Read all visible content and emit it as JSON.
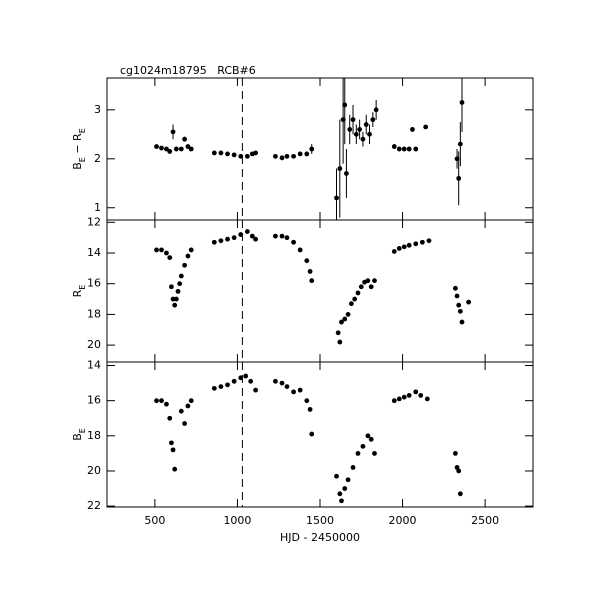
{
  "chart_data": [
    {
      "type": "scatter",
      "title": "cg1024m18795   RCB#6",
      "ylabel": "B_E − R_E",
      "x": [
        510,
        540,
        570,
        590,
        610,
        630,
        660,
        680,
        700,
        720,
        860,
        900,
        940,
        980,
        1020,
        1060,
        1090,
        1110,
        1230,
        1270,
        1300,
        1340,
        1380,
        1420,
        1450,
        1600,
        1620,
        1640,
        1650,
        1660,
        1680,
        1700,
        1720,
        1740,
        1760,
        1780,
        1800,
        1820,
        1840,
        1950,
        1980,
        2010,
        2040,
        2060,
        2080,
        2140,
        2330,
        2340,
        2350,
        2360
      ],
      "values": [
        2.25,
        2.22,
        2.2,
        2.15,
        2.55,
        2.2,
        2.2,
        2.4,
        2.25,
        2.2,
        2.12,
        2.12,
        2.1,
        2.08,
        2.05,
        2.05,
        2.1,
        2.12,
        2.05,
        2.02,
        2.05,
        2.05,
        2.1,
        2.1,
        2.2,
        1.2,
        1.8,
        2.8,
        3.1,
        1.7,
        2.6,
        2.8,
        2.5,
        2.6,
        2.4,
        2.7,
        2.5,
        2.8,
        3.0,
        2.25,
        2.2,
        2.2,
        2.2,
        2.6,
        2.2,
        2.65,
        2.0,
        1.6,
        2.3,
        3.15
      ],
      "errors": [
        0.03,
        0.03,
        0.03,
        0.05,
        0.15,
        0.05,
        0.03,
        0.05,
        0.03,
        0.03,
        0.03,
        0.03,
        0.03,
        0.03,
        0.03,
        0.03,
        0.03,
        0.03,
        0.03,
        0.05,
        0.03,
        0.03,
        0.03,
        0.05,
        0.1,
        0.6,
        1.0,
        0.9,
        0.8,
        0.5,
        0.3,
        0.3,
        0.2,
        0.2,
        0.15,
        0.2,
        0.2,
        0.15,
        0.2,
        0.05,
        0.05,
        0.05,
        0.05,
        0.05,
        0.05,
        0.03,
        0.2,
        0.55,
        0.45,
        0.6
      ],
      "xlim": [
        210,
        2790
      ],
      "ylim": [
        0.75,
        3.65
      ],
      "yticks": [
        1,
        2,
        3
      ],
      "vline": 1030,
      "color": "#000000"
    },
    {
      "type": "scatter",
      "ylabel": "R_E",
      "x": [
        510,
        540,
        570,
        590,
        600,
        610,
        620,
        630,
        640,
        650,
        660,
        680,
        700,
        720,
        860,
        900,
        940,
        980,
        1020,
        1060,
        1090,
        1110,
        1230,
        1270,
        1300,
        1340,
        1380,
        1420,
        1440,
        1450,
        1610,
        1620,
        1630,
        1650,
        1670,
        1690,
        1710,
        1730,
        1750,
        1770,
        1790,
        1810,
        1830,
        1950,
        1980,
        2010,
        2040,
        2080,
        2120,
        2160,
        2320,
        2330,
        2340,
        2350,
        2360,
        2400
      ],
      "values": [
        13.8,
        13.8,
        14,
        14.3,
        16.2,
        17,
        17.4,
        17,
        16.5,
        16,
        15.5,
        14.8,
        14.2,
        13.8,
        13.3,
        13.2,
        13.1,
        13.0,
        12.8,
        12.6,
        12.9,
        13.1,
        12.9,
        12.9,
        13.0,
        13.3,
        13.8,
        14.5,
        15.2,
        15.8,
        19.2,
        19.8,
        18.5,
        18.3,
        18.0,
        17.3,
        17.0,
        16.6,
        16.2,
        15.9,
        15.8,
        16.2,
        15.8,
        13.9,
        13.7,
        13.6,
        13.5,
        13.4,
        13.3,
        13.2,
        16.3,
        16.8,
        17.4,
        17.8,
        18.5,
        17.2
      ],
      "xlim": [
        210,
        2790
      ],
      "ylim": [
        21.1,
        11.85
      ],
      "yticks": [
        12,
        14,
        16,
        18,
        20
      ],
      "vline": 1030,
      "color": "#000000"
    },
    {
      "type": "scatter",
      "ylabel": "B_E",
      "xlabel": "HJD - 2450000",
      "x": [
        510,
        540,
        570,
        590,
        600,
        610,
        620,
        660,
        680,
        700,
        720,
        860,
        900,
        940,
        980,
        1020,
        1050,
        1080,
        1110,
        1230,
        1270,
        1300,
        1340,
        1380,
        1420,
        1440,
        1450,
        1600,
        1620,
        1630,
        1650,
        1670,
        1700,
        1730,
        1760,
        1790,
        1810,
        1830,
        1950,
        1980,
        2010,
        2040,
        2080,
        2110,
        2150,
        2320,
        2330,
        2340,
        2350
      ],
      "values": [
        16,
        16,
        16.2,
        17,
        18.4,
        18.8,
        19.9,
        16.6,
        17.3,
        16.3,
        16.0,
        15.3,
        15.2,
        15.1,
        14.9,
        14.7,
        14.6,
        14.9,
        15.4,
        14.9,
        15.0,
        15.2,
        15.5,
        15.4,
        16.0,
        16.5,
        17.9,
        20.3,
        21.3,
        21.7,
        21.0,
        20.5,
        19.8,
        19.0,
        18.6,
        18.0,
        18.2,
        19.0,
        16.0,
        15.9,
        15.8,
        15.7,
        15.5,
        15.7,
        15.9,
        19.0,
        19.8,
        20.0,
        21.3
      ],
      "xlim": [
        210,
        2790
      ],
      "ylim": [
        22.05,
        13.8
      ],
      "xticks": [
        500,
        1000,
        1500,
        2000,
        2500
      ],
      "yticks": [
        14,
        16,
        18,
        20,
        22
      ],
      "vline": 1030,
      "color": "#000000"
    }
  ]
}
